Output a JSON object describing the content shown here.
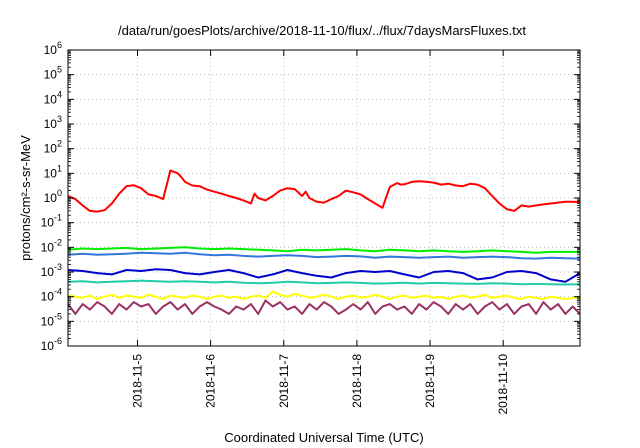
{
  "chart_data": {
    "type": "line",
    "title": "/data/run/goesPlots/archive/2018-11-10/flux/../flux/7daysMarsFluxes.txt",
    "xlabel": "Coordinated Universal Time (UTC)",
    "ylabel": "protons/cm²-s-sr-MeV",
    "yscale": "log",
    "ylim": [
      1e-06,
      1000000.0
    ],
    "xlim": [
      0,
      7
    ],
    "grid": true,
    "y_ticks": [
      {
        "base": "10",
        "exp": "-6"
      },
      {
        "base": "10",
        "exp": "-5"
      },
      {
        "base": "10",
        "exp": "-4"
      },
      {
        "base": "10",
        "exp": "-3"
      },
      {
        "base": "10",
        "exp": "-2"
      },
      {
        "base": "10",
        "exp": "-1"
      },
      {
        "base": "10",
        "exp": "0"
      },
      {
        "base": "10",
        "exp": "1"
      },
      {
        "base": "10",
        "exp": "2"
      },
      {
        "base": "10",
        "exp": "3"
      },
      {
        "base": "10",
        "exp": "4"
      },
      {
        "base": "10",
        "exp": "5"
      },
      {
        "base": "10",
        "exp": "6"
      }
    ],
    "x_ticks": [
      {
        "label": "2018-11-5",
        "x": 0.95
      },
      {
        "label": "2018-11-6",
        "x": 1.95
      },
      {
        "label": "2018-11-7",
        "x": 2.95
      },
      {
        "label": "2018-11-8",
        "x": 3.95
      },
      {
        "label": "2018-11-9",
        "x": 4.95
      },
      {
        "label": "2018-11-10",
        "x": 5.95
      }
    ],
    "series": [
      {
        "color": "#ff0000",
        "x": [
          0,
          0.1,
          0.2,
          0.3,
          0.4,
          0.5,
          0.6,
          0.7,
          0.8,
          0.9,
          1.0,
          1.1,
          1.2,
          1.3,
          1.4,
          1.5,
          1.55,
          1.6,
          1.7,
          1.8,
          1.9,
          2.0,
          2.1,
          2.2,
          2.3,
          2.4,
          2.5,
          2.55,
          2.6,
          2.7,
          2.8,
          2.9,
          3.0,
          3.1,
          3.2,
          3.25,
          3.3,
          3.4,
          3.5,
          3.6,
          3.7,
          3.8,
          3.9,
          4.0,
          4.1,
          4.2,
          4.3,
          4.4,
          4.5,
          4.55,
          4.6,
          4.7,
          4.8,
          4.9,
          5.0,
          5.1,
          5.2,
          5.3,
          5.4,
          5.5,
          5.6,
          5.7,
          5.8,
          5.9,
          6.0,
          6.1,
          6.2,
          6.3,
          6.4,
          6.5,
          6.6,
          6.7,
          6.8,
          6.9,
          7.0
        ],
        "y": [
          1.2,
          0.9,
          0.5,
          0.3,
          0.28,
          0.32,
          0.6,
          1.5,
          3.0,
          3.3,
          2.5,
          1.4,
          1.2,
          0.9,
          13.0,
          10.0,
          7.0,
          4.5,
          3.2,
          3.0,
          2.2,
          1.8,
          1.5,
          1.2,
          1.0,
          0.8,
          0.6,
          1.5,
          1.0,
          0.8,
          1.2,
          2.0,
          2.5,
          2.3,
          1.2,
          1.8,
          1.0,
          0.7,
          0.65,
          0.9,
          1.2,
          2.0,
          1.7,
          1.4,
          0.9,
          0.6,
          0.4,
          2.8,
          4.0,
          3.5,
          3.6,
          4.5,
          4.8,
          4.6,
          4.2,
          3.5,
          3.8,
          3.2,
          3.0,
          3.8,
          3.5,
          2.5,
          1.2,
          0.6,
          0.35,
          0.3,
          0.5,
          0.45,
          0.5,
          0.55,
          0.6,
          0.65,
          0.7,
          0.7,
          0.68
        ]
      },
      {
        "color": "#00ee00",
        "x": [
          0,
          0.2,
          0.4,
          0.6,
          0.8,
          1.0,
          1.2,
          1.4,
          1.6,
          1.8,
          2.0,
          2.2,
          2.4,
          2.6,
          2.8,
          3.0,
          3.2,
          3.4,
          3.6,
          3.8,
          4.0,
          4.2,
          4.4,
          4.6,
          4.8,
          5.0,
          5.2,
          5.4,
          5.6,
          5.8,
          6.0,
          6.2,
          6.4,
          6.6,
          6.8,
          7.0
        ],
        "y": [
          0.008,
          0.009,
          0.0085,
          0.009,
          0.0095,
          0.0085,
          0.009,
          0.0095,
          0.01,
          0.009,
          0.0085,
          0.009,
          0.0085,
          0.008,
          0.0075,
          0.007,
          0.008,
          0.0075,
          0.008,
          0.0085,
          0.0075,
          0.007,
          0.008,
          0.0075,
          0.007,
          0.0075,
          0.007,
          0.0065,
          0.007,
          0.0075,
          0.007,
          0.0065,
          0.006,
          0.0065,
          0.0065,
          0.0065
        ]
      },
      {
        "color": "#3377dd",
        "x": [
          0,
          0.2,
          0.4,
          0.6,
          0.8,
          1.0,
          1.2,
          1.4,
          1.6,
          1.8,
          2.0,
          2.2,
          2.4,
          2.6,
          2.8,
          3.0,
          3.2,
          3.4,
          3.6,
          3.8,
          4.0,
          4.2,
          4.4,
          4.6,
          4.8,
          5.0,
          5.2,
          5.4,
          5.6,
          5.8,
          6.0,
          6.2,
          6.4,
          6.6,
          6.8,
          7.0
        ],
        "y": [
          0.005,
          0.0055,
          0.005,
          0.0052,
          0.0055,
          0.006,
          0.0058,
          0.0055,
          0.006,
          0.0052,
          0.0048,
          0.005,
          0.0045,
          0.0042,
          0.0045,
          0.0048,
          0.0045,
          0.004,
          0.0042,
          0.0045,
          0.0043,
          0.0038,
          0.0042,
          0.004,
          0.0038,
          0.004,
          0.0042,
          0.0038,
          0.004,
          0.0042,
          0.004,
          0.0036,
          0.0035,
          0.0038,
          0.0036,
          0.0035
        ]
      },
      {
        "color": "#0000cc",
        "x": [
          0,
          0.2,
          0.4,
          0.6,
          0.8,
          1.0,
          1.2,
          1.4,
          1.6,
          1.8,
          2.0,
          2.2,
          2.4,
          2.6,
          2.8,
          3.0,
          3.2,
          3.4,
          3.6,
          3.8,
          4.0,
          4.2,
          4.4,
          4.6,
          4.8,
          5.0,
          5.2,
          5.4,
          5.6,
          5.8,
          6.0,
          6.2,
          6.4,
          6.6,
          6.8,
          7.0
        ],
        "y": [
          0.0012,
          0.0011,
          0.0009,
          0.0008,
          0.0012,
          0.0011,
          0.0013,
          0.0012,
          0.0009,
          0.0008,
          0.001,
          0.0012,
          0.0009,
          0.0006,
          0.0008,
          0.0012,
          0.0009,
          0.0007,
          0.0006,
          0.0009,
          0.0011,
          0.001,
          0.0011,
          0.0008,
          0.0006,
          0.001,
          0.0011,
          0.0009,
          0.0005,
          0.0006,
          0.001,
          0.0011,
          0.0009,
          0.0005,
          0.0004,
          0.0009
        ]
      },
      {
        "color": "#22ccaa",
        "x": [
          0,
          0.2,
          0.4,
          0.6,
          0.8,
          1.0,
          1.2,
          1.4,
          1.6,
          1.8,
          2.0,
          2.2,
          2.4,
          2.6,
          2.8,
          3.0,
          3.2,
          3.4,
          3.6,
          3.8,
          4.0,
          4.2,
          4.4,
          4.6,
          4.8,
          5.0,
          5.2,
          5.4,
          5.6,
          5.8,
          6.0,
          6.2,
          6.4,
          6.6,
          6.8,
          7.0
        ],
        "y": [
          0.0004,
          0.00042,
          0.00038,
          0.0004,
          0.00042,
          0.00045,
          0.00042,
          0.0004,
          0.00042,
          0.0004,
          0.00038,
          0.0004,
          0.00037,
          0.00035,
          0.00037,
          0.0004,
          0.00038,
          0.00035,
          0.00036,
          0.00038,
          0.00036,
          0.00034,
          0.00035,
          0.00037,
          0.00034,
          0.00036,
          0.00035,
          0.00034,
          0.00033,
          0.00035,
          0.00034,
          0.00032,
          0.00033,
          0.00032,
          0.00031,
          0.00032
        ]
      },
      {
        "color": "#ffff00",
        "x": [
          0,
          0.1,
          0.2,
          0.3,
          0.4,
          0.5,
          0.6,
          0.7,
          0.8,
          0.9,
          1.0,
          1.1,
          1.2,
          1.3,
          1.4,
          1.5,
          1.6,
          1.7,
          1.8,
          1.9,
          2.0,
          2.1,
          2.2,
          2.3,
          2.4,
          2.5,
          2.6,
          2.7,
          2.8,
          2.9,
          3.0,
          3.1,
          3.2,
          3.3,
          3.4,
          3.5,
          3.6,
          3.7,
          3.8,
          3.9,
          4.0,
          4.1,
          4.2,
          4.3,
          4.4,
          4.5,
          4.6,
          4.7,
          4.8,
          4.9,
          5.0,
          5.1,
          5.2,
          5.3,
          5.4,
          5.5,
          5.6,
          5.7,
          5.8,
          5.9,
          6.0,
          6.1,
          6.2,
          6.3,
          6.4,
          6.5,
          6.6,
          6.7,
          6.8,
          6.9,
          7.0
        ],
        "y": [
          0.00011,
          0.0001,
          9e-05,
          0.00011,
          8e-05,
          0.0001,
          0.00012,
          9e-05,
          0.00011,
          0.0001,
          9e-05,
          0.00012,
          0.0001,
          8e-05,
          0.00011,
          0.0001,
          9e-05,
          0.00011,
          0.0001,
          8e-05,
          0.0001,
          0.00011,
          9e-05,
          0.0001,
          8e-05,
          0.0001,
          0.00011,
          9e-05,
          0.00016,
          0.00012,
          0.0001,
          0.00013,
          0.00011,
          9e-05,
          0.0001,
          0.00012,
          0.0001,
          8e-05,
          0.0001,
          0.00011,
          9e-05,
          0.0001,
          0.00012,
          0.0001,
          8e-05,
          0.0001,
          0.00011,
          9e-05,
          0.0001,
          0.00011,
          9e-05,
          0.0001,
          8e-05,
          0.0001,
          0.00011,
          9e-05,
          0.0001,
          0.00012,
          9e-05,
          0.0001,
          0.00011,
          9e-05,
          8e-05,
          0.0001,
          9e-05,
          8e-05,
          0.0001,
          9e-05,
          8e-05,
          9e-05,
          9e-05
        ]
      },
      {
        "color": "#993366",
        "x": [
          0,
          0.1,
          0.2,
          0.3,
          0.4,
          0.5,
          0.6,
          0.7,
          0.8,
          0.9,
          1.0,
          1.1,
          1.2,
          1.3,
          1.4,
          1.5,
          1.6,
          1.7,
          1.8,
          1.9,
          2.0,
          2.1,
          2.2,
          2.3,
          2.4,
          2.5,
          2.6,
          2.7,
          2.8,
          2.9,
          3.0,
          3.1,
          3.2,
          3.3,
          3.4,
          3.5,
          3.6,
          3.7,
          3.8,
          3.9,
          4.0,
          4.1,
          4.2,
          4.3,
          4.4,
          4.5,
          4.6,
          4.7,
          4.8,
          4.9,
          5.0,
          5.1,
          5.2,
          5.3,
          5.4,
          5.5,
          5.6,
          5.7,
          5.8,
          5.9,
          6.0,
          6.1,
          6.2,
          6.3,
          6.4,
          6.5,
          6.6,
          6.7,
          6.8,
          6.9,
          7.0
        ],
        "y": [
          5e-05,
          2e-05,
          5e-05,
          3e-05,
          6e-05,
          4e-05,
          2e-05,
          5e-05,
          3e-05,
          6e-05,
          4e-05,
          5e-05,
          2e-05,
          4e-05,
          6e-05,
          3e-05,
          5e-05,
          2e-05,
          4e-05,
          6e-05,
          4e-05,
          3e-05,
          2e-05,
          4e-05,
          3e-05,
          5e-05,
          2e-05,
          7e-05,
          4e-05,
          6e-05,
          3e-05,
          4e-05,
          2e-05,
          5e-05,
          3e-05,
          6e-05,
          4e-05,
          2e-05,
          3e-05,
          5e-05,
          3e-05,
          6e-05,
          2e-05,
          4e-05,
          5e-05,
          3e-05,
          4e-05,
          2e-05,
          5e-05,
          3e-05,
          6e-05,
          4e-05,
          2e-05,
          5e-05,
          3e-05,
          5e-05,
          2e-05,
          4e-05,
          6e-05,
          3e-05,
          5e-05,
          2e-05,
          4e-05,
          5e-05,
          2e-05,
          6e-05,
          3e-05,
          5e-05,
          2e-05,
          4e-05,
          2e-05
        ]
      }
    ]
  }
}
